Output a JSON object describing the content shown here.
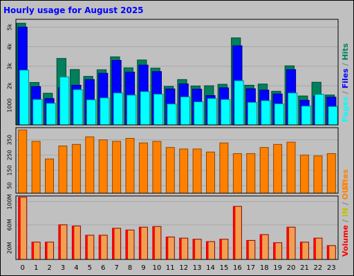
{
  "chart_data": {
    "type": "bar",
    "title": "Hourly usage for August 2025",
    "categories": [
      "0",
      "1",
      "2",
      "3",
      "4",
      "5",
      "6",
      "7",
      "8",
      "9",
      "10",
      "11",
      "12",
      "13",
      "14",
      "15",
      "16",
      "17",
      "18",
      "19",
      "20",
      "21",
      "22",
      "23"
    ],
    "colors": {
      "title": "#0000ff",
      "background": "#c0c0c0",
      "plot_background": "#c0c0c0",
      "grid": "#a8a8a8",
      "hits": "#00805c",
      "files": "#0000ff",
      "pages": "#00ffff",
      "sites": "#ff8000",
      "volume": "#ff0000",
      "volume_fill": "#e06020",
      "in_out": "#c0c000",
      "slash": "#808080"
    },
    "panels": [
      {
        "id": "hits-files-pages",
        "ylim": [
          0,
          5400
        ],
        "yticks": [
          1000,
          2000,
          3000,
          4000,
          5000
        ],
        "ytick_labels": [
          "1000",
          "2k",
          "3k",
          "4k",
          "5k"
        ],
        "series": [
          {
            "name": "Hits",
            "color_key": "hits",
            "values": [
              5200,
              2170,
              1620,
              3400,
              2830,
              2480,
              2820,
              3480,
              2920,
              3320,
              2900,
              1970,
              2320,
              1990,
              2000,
              2080,
              4450,
              2030,
              2090,
              1720,
              3020,
              1480,
              2180,
              1530
            ]
          },
          {
            "name": "Files",
            "color_key": "files",
            "values": [
              5000,
              1960,
              1350,
              1900,
              2030,
              2320,
              2640,
              3300,
              2700,
              3060,
              2730,
              1840,
              2100,
              1830,
              1500,
              1900,
              4050,
              1850,
              1780,
              1580,
              2830,
              1260,
              1480,
              1420
            ]
          },
          {
            "name": "Pages",
            "color_key": "pages",
            "values": [
              2800,
              1300,
              1100,
              2450,
              1800,
              1280,
              1380,
              1630,
              1520,
              1700,
              1570,
              1070,
              1430,
              1180,
              1350,
              1300,
              2260,
              1150,
              1240,
              1080,
              1630,
              960,
              1560,
              940
            ]
          }
        ],
        "side_labels": [
          "Pages",
          "Files",
          "Hits"
        ]
      },
      {
        "id": "sites",
        "ylim": [
          0,
          430
        ],
        "yticks": [
          50,
          150,
          250,
          350
        ],
        "ytick_labels": [
          "50",
          "150",
          "250",
          "350"
        ],
        "series": [
          {
            "name": "Sites",
            "color_key": "sites",
            "values": [
              415,
              340,
              225,
              310,
              320,
              370,
              350,
              340,
              360,
              330,
              340,
              300,
              290,
              290,
              270,
              330,
              260,
              260,
              300,
              320,
              335,
              250,
              245,
              260
            ]
          }
        ],
        "side_labels": [
          "Sites"
        ]
      },
      {
        "id": "volume",
        "ylim": [
          0,
          110
        ],
        "yticks": [
          20,
          60,
          100
        ],
        "ytick_labels": [
          "20M",
          "60M",
          "100M"
        ],
        "series": [
          {
            "name": "Volume",
            "color_key": "volume",
            "values": [
              108,
              30,
              30,
              60,
              58,
              42,
              42,
              54,
              51,
              56,
              57,
              39,
              37,
              35,
              31,
              35,
              92,
              33,
              43,
              29,
              56,
              30,
              37,
              24
            ]
          }
        ],
        "side_labels": [
          "Volume",
          "IN",
          "OUT"
        ]
      }
    ]
  }
}
